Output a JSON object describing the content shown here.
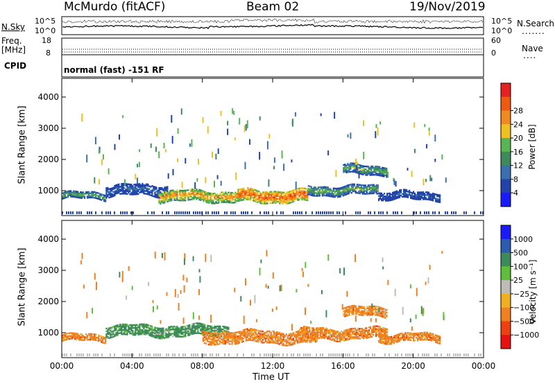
{
  "header": {
    "station": "McMurdo (fitACF)",
    "beam": "Beam 02",
    "date": "19/Nov/2019"
  },
  "top_panels": {
    "nsky_label": "N.Sky",
    "nsearch_label": "N.Search",
    "noise_ticks": [
      "10^5",
      "10^0"
    ],
    "freq_label": "Freq.",
    "freq_unit": "[MHz]",
    "freq_ticks": [
      "18",
      "8"
    ],
    "nave_label": "Nave",
    "nave_ticks": [
      "60",
      "0"
    ],
    "cpid_label": "CPID",
    "cpid_value": "normal (fast) -151 RF"
  },
  "chart_data": [
    {
      "type": "heatmap",
      "title": "",
      "xlabel": "Time UT",
      "ylabel": "Slant Range [km]",
      "x_ticks": [
        "00:00",
        "04:00",
        "08:00",
        "12:00",
        "16:00",
        "20:00",
        "00:00"
      ],
      "xlim_hours": [
        0,
        24
      ],
      "y_ticks": [
        1000,
        2000,
        3000,
        4000
      ],
      "ylim": [
        200,
        4600
      ],
      "colorbar": {
        "label": "Power [dB]",
        "ticks": [
          "4",
          "8",
          "12",
          "16",
          "20",
          "24",
          "28"
        ],
        "range": [
          0,
          32
        ],
        "colors": [
          "#1a1aff",
          "#2244aa",
          "#3a6fb0",
          "#3e8a5a",
          "#58b552",
          "#f0c020",
          "#f08a20",
          "#f05a10",
          "#e82020"
        ]
      },
      "echo_bands": [
        {
          "t_start": 0.0,
          "t_end": 2.5,
          "r_center": 820,
          "r_half": 100,
          "level": "mid"
        },
        {
          "t_start": 2.5,
          "t_end": 6.0,
          "r_center": 1000,
          "r_half": 170,
          "level": "low"
        },
        {
          "t_start": 5.5,
          "t_end": 10.0,
          "r_center": 820,
          "r_half": 180,
          "level": "high"
        },
        {
          "t_start": 10.0,
          "t_end": 14.0,
          "r_center": 820,
          "r_half": 200,
          "level": "peak"
        },
        {
          "t_start": 14.0,
          "t_end": 18.0,
          "r_center": 1000,
          "r_half": 150,
          "level": "mid"
        },
        {
          "t_start": 16.0,
          "t_end": 18.5,
          "r_center": 1650,
          "r_half": 150,
          "level": "mid"
        },
        {
          "t_start": 18.0,
          "t_end": 21.5,
          "r_center": 820,
          "r_half": 120,
          "level": "low"
        }
      ]
    },
    {
      "type": "heatmap",
      "title": "",
      "xlabel": "Time UT",
      "ylabel": "Slant Range [km]",
      "x_ticks": [
        "00:00",
        "04:00",
        "08:00",
        "12:00",
        "16:00",
        "20:00",
        "00:00"
      ],
      "xlim_hours": [
        0,
        24
      ],
      "y_ticks": [
        1000,
        2000,
        3000,
        4000
      ],
      "ylim": [
        200,
        4600
      ],
      "colorbar": {
        "label": "Velocity [m s⁻¹]",
        "ticks": [
          "1000",
          "500",
          "100",
          "25",
          "−25",
          "−100",
          "−500",
          "−1000"
        ],
        "range": [
          -1200,
          1200
        ],
        "colors": [
          "#1a1aff",
          "#2b5bb0",
          "#3e8a5a",
          "#5fbf3a",
          "#bdbdb5",
          "#f0b020",
          "#f08020",
          "#f04010",
          "#e81010"
        ]
      },
      "echo_bands": [
        {
          "t_start": 0.0,
          "t_end": 2.5,
          "r_center": 820,
          "r_half": 100,
          "level": "neg"
        },
        {
          "t_start": 2.5,
          "t_end": 9.5,
          "r_center": 1050,
          "r_half": 170,
          "level": "pos"
        },
        {
          "t_start": 8.0,
          "t_end": 14.5,
          "r_center": 850,
          "r_half": 190,
          "level": "neg"
        },
        {
          "t_start": 13.5,
          "t_end": 18.5,
          "r_center": 950,
          "r_half": 160,
          "level": "neg"
        },
        {
          "t_start": 16.0,
          "t_end": 18.5,
          "r_center": 1650,
          "r_half": 140,
          "level": "neg"
        },
        {
          "t_start": 18.0,
          "t_end": 21.5,
          "r_center": 820,
          "r_half": 120,
          "level": "neg"
        }
      ]
    }
  ]
}
